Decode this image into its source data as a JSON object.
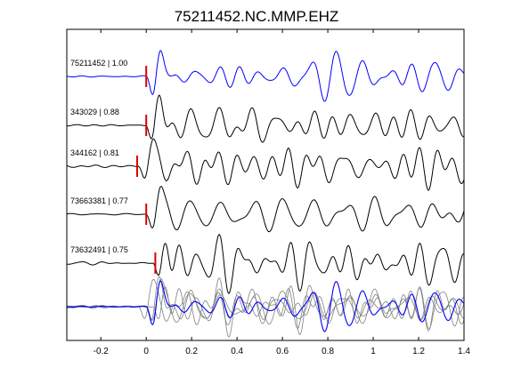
{
  "chart_data": {
    "type": "line",
    "title": "75211452.NC.MMP.EHZ",
    "xlabel": "",
    "ylabel": "",
    "xlim": [
      -0.35,
      1.4
    ],
    "x_ticks": [
      -0.2,
      0,
      0.2,
      0.4,
      0.6,
      0.8,
      1,
      1.2,
      1.4
    ],
    "x_tick_labels": [
      "-0.2",
      "0",
      "0.2",
      "0.4",
      "0.6",
      "0.8",
      "1",
      "1.2",
      "1.4"
    ],
    "grid": false,
    "pick_color": "#e00000",
    "reference_color": "#0000ff",
    "trace_color": "#000000",
    "overlay_color": "#808080",
    "traces": [
      {
        "event_id": "75211452",
        "correlation": "1.00",
        "label": "75211452 | 1.00",
        "pick_time": 0.0,
        "shift": 0.0,
        "color": "#0000ff"
      },
      {
        "event_id": "343029",
        "correlation": "0.88",
        "label": "343029 | 0.88",
        "pick_time": 0.0,
        "shift": 0.0,
        "color": "#000000"
      },
      {
        "event_id": "344162",
        "correlation": "0.81",
        "label": "344162 | 0.81",
        "pick_time": -0.04,
        "shift": -0.035,
        "color": "#000000"
      },
      {
        "event_id": "73663381",
        "correlation": "0.77",
        "label": "73663381 | 0.77",
        "pick_time": 0.0,
        "shift": 0.0,
        "color": "#000000"
      },
      {
        "event_id": "73632491",
        "correlation": "0.75",
        "label": "73632491 | 0.75",
        "pick_time": 0.04,
        "shift": 0.03,
        "color": "#000000"
      }
    ],
    "overlay": {
      "description_visible": false
    }
  }
}
